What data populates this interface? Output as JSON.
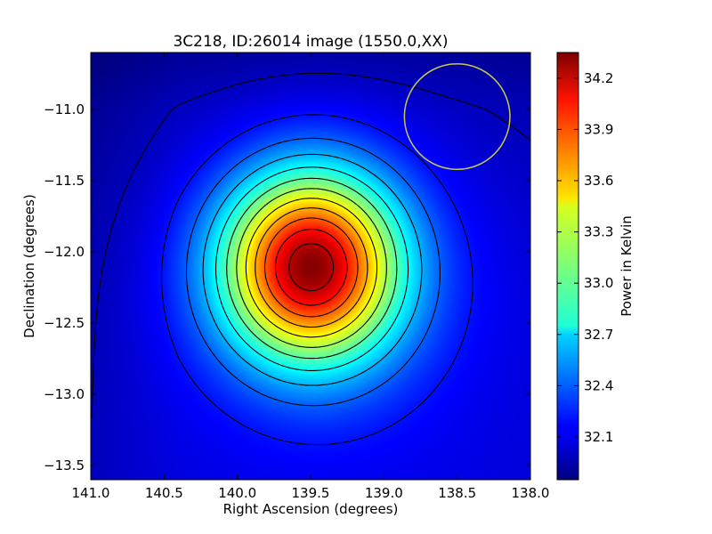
{
  "chart_data": {
    "type": "heatmap",
    "title": "3C218, ID:26014 image (1550.0,XX)",
    "xlabel": "Right Ascension (degrees)",
    "ylabel": "Declination (degrees)",
    "colorbar_label": "Power in Kelvin",
    "colormap": "jet",
    "x_range": [
      141.0,
      138.0
    ],
    "y_range": [
      -13.6,
      -10.6
    ],
    "x_ticks": [
      "141.0",
      "140.5",
      "140.0",
      "139.5",
      "139.0",
      "138.5",
      "138.0"
    ],
    "y_ticks": [
      "−11.0",
      "−11.5",
      "−12.0",
      "−12.5",
      "−13.0",
      "−13.5"
    ],
    "colorbar_range": [
      31.85,
      34.35
    ],
    "colorbar_ticks": [
      "32.1",
      "32.4",
      "32.7",
      "33.0",
      "33.3",
      "33.6",
      "33.9",
      "34.2"
    ],
    "peak": {
      "ra": 139.5,
      "dec": -12.1,
      "value": 34.3
    },
    "beam_circle": {
      "ra": 138.5,
      "dec": -11.05,
      "radius_deg": 0.36,
      "color": "#c8c850"
    },
    "contour_color": "#000000",
    "grid": false
  }
}
